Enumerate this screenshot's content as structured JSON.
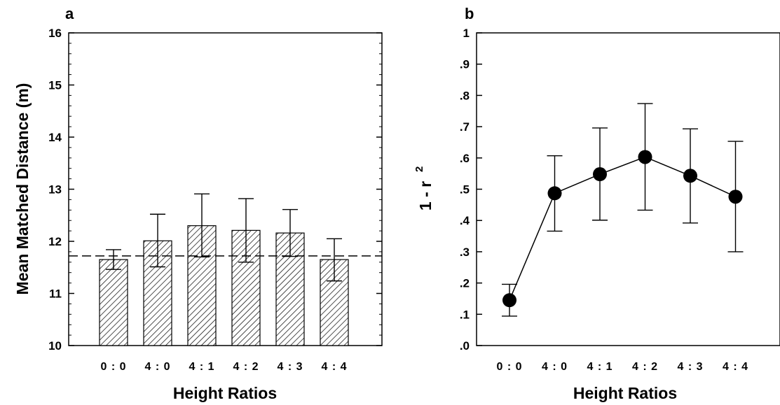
{
  "chart_data": [
    {
      "panel": "a",
      "type": "bar",
      "xlabel": "Height Ratios",
      "ylabel": "Mean Matched Distance (m)",
      "categories": [
        "0 : 0",
        "4 : 0",
        "4 : 1",
        "4 : 2",
        "4 : 3",
        "4 : 4"
      ],
      "values": [
        11.65,
        12.01,
        12.3,
        12.21,
        12.16,
        11.65
      ],
      "error_upper": [
        11.84,
        12.52,
        12.91,
        12.82,
        12.61,
        12.05
      ],
      "error_lower": [
        11.46,
        11.51,
        11.7,
        11.6,
        11.71,
        11.24
      ],
      "reference_line": 11.72,
      "ylim": [
        10,
        16
      ],
      "yticks": [
        10,
        11,
        12,
        13,
        14,
        15,
        16
      ],
      "bar_fill": "diagonal-hatch"
    },
    {
      "panel": "b",
      "type": "line",
      "xlabel": "Height Ratios",
      "ylabel": "1 - r",
      "ylabel_superscript": "2",
      "categories": [
        "0 : 0",
        "4 : 0",
        "4 : 1",
        "4 : 2",
        "4 : 3",
        "4 : 4"
      ],
      "values": [
        0.145,
        0.487,
        0.548,
        0.603,
        0.543,
        0.476
      ],
      "error_upper": [
        0.196,
        0.607,
        0.696,
        0.774,
        0.693,
        0.653
      ],
      "error_lower": [
        0.094,
        0.366,
        0.401,
        0.433,
        0.392,
        0.3
      ],
      "ylim": [
        0,
        1
      ],
      "yticks": [
        0,
        0.1,
        0.2,
        0.3,
        0.4,
        0.5,
        0.6,
        0.7,
        0.8,
        0.9,
        1
      ],
      "ytick_labels": [
        ".0",
        ".1",
        ".2",
        ".3",
        ".4",
        ".5",
        ".6",
        ".7",
        ".8",
        ".9",
        "1"
      ],
      "marker": "filled-circle"
    }
  ],
  "colors": {
    "ink": "#000000",
    "background": "#ffffff"
  }
}
